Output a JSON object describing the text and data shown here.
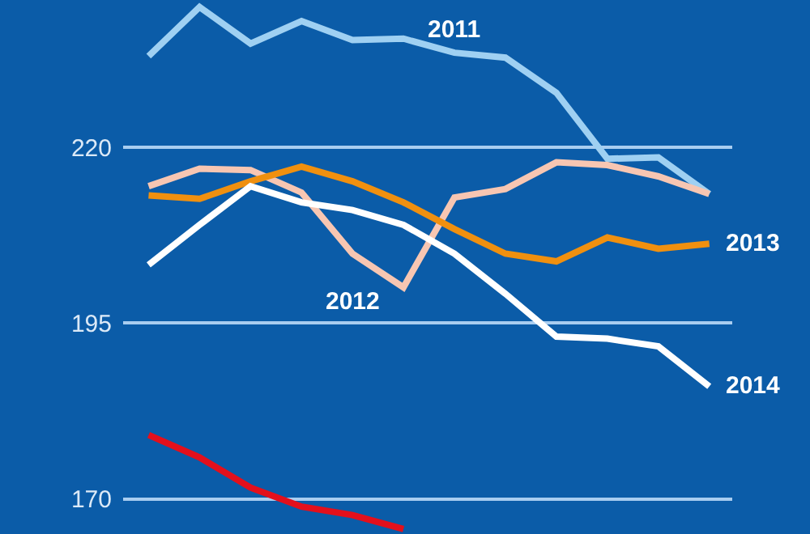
{
  "chart_data": {
    "type": "line",
    "categories": [
      null,
      null,
      null,
      null,
      null,
      null,
      null,
      null,
      null,
      null,
      null,
      null
    ],
    "series": [
      {
        "name": "2011",
        "color": "#9fd0f2",
        "values": [
          233.0,
          240.0,
          234.8,
          238.0,
          235.3,
          235.5,
          233.5,
          232.8,
          227.8,
          218.4,
          218.6,
          213.4
        ]
      },
      {
        "name": "2012",
        "color": "#f7c6b2",
        "values": [
          214.5,
          217.0,
          216.8,
          213.6,
          204.9,
          200.1,
          212.9,
          214.1,
          217.9,
          217.5,
          215.9,
          213.4
        ]
      },
      {
        "name": "2013",
        "color": "#f0900f",
        "values": [
          213.2,
          212.7,
          215.2,
          217.3,
          215.2,
          212.2,
          208.4,
          204.9,
          203.8,
          207.2,
          205.6,
          206.3
        ]
      },
      {
        "name": "2014",
        "color": "#ffffff",
        "values": [
          203.3,
          209.0,
          214.5,
          212.2,
          211.1,
          209.0,
          204.9,
          199.2,
          193.1,
          192.8,
          191.7,
          186.0
        ]
      },
      {
        "color": "#e3101c",
        "values": [
          179.1,
          175.9,
          171.6,
          168.9,
          167.7,
          165.7,
          null,
          null,
          null,
          null,
          null,
          null
        ]
      }
    ],
    "ylim": [
      165,
      241
    ],
    "yticks": [
      170,
      195,
      220
    ],
    "grid": "y",
    "tick_labels": "y"
  }
}
